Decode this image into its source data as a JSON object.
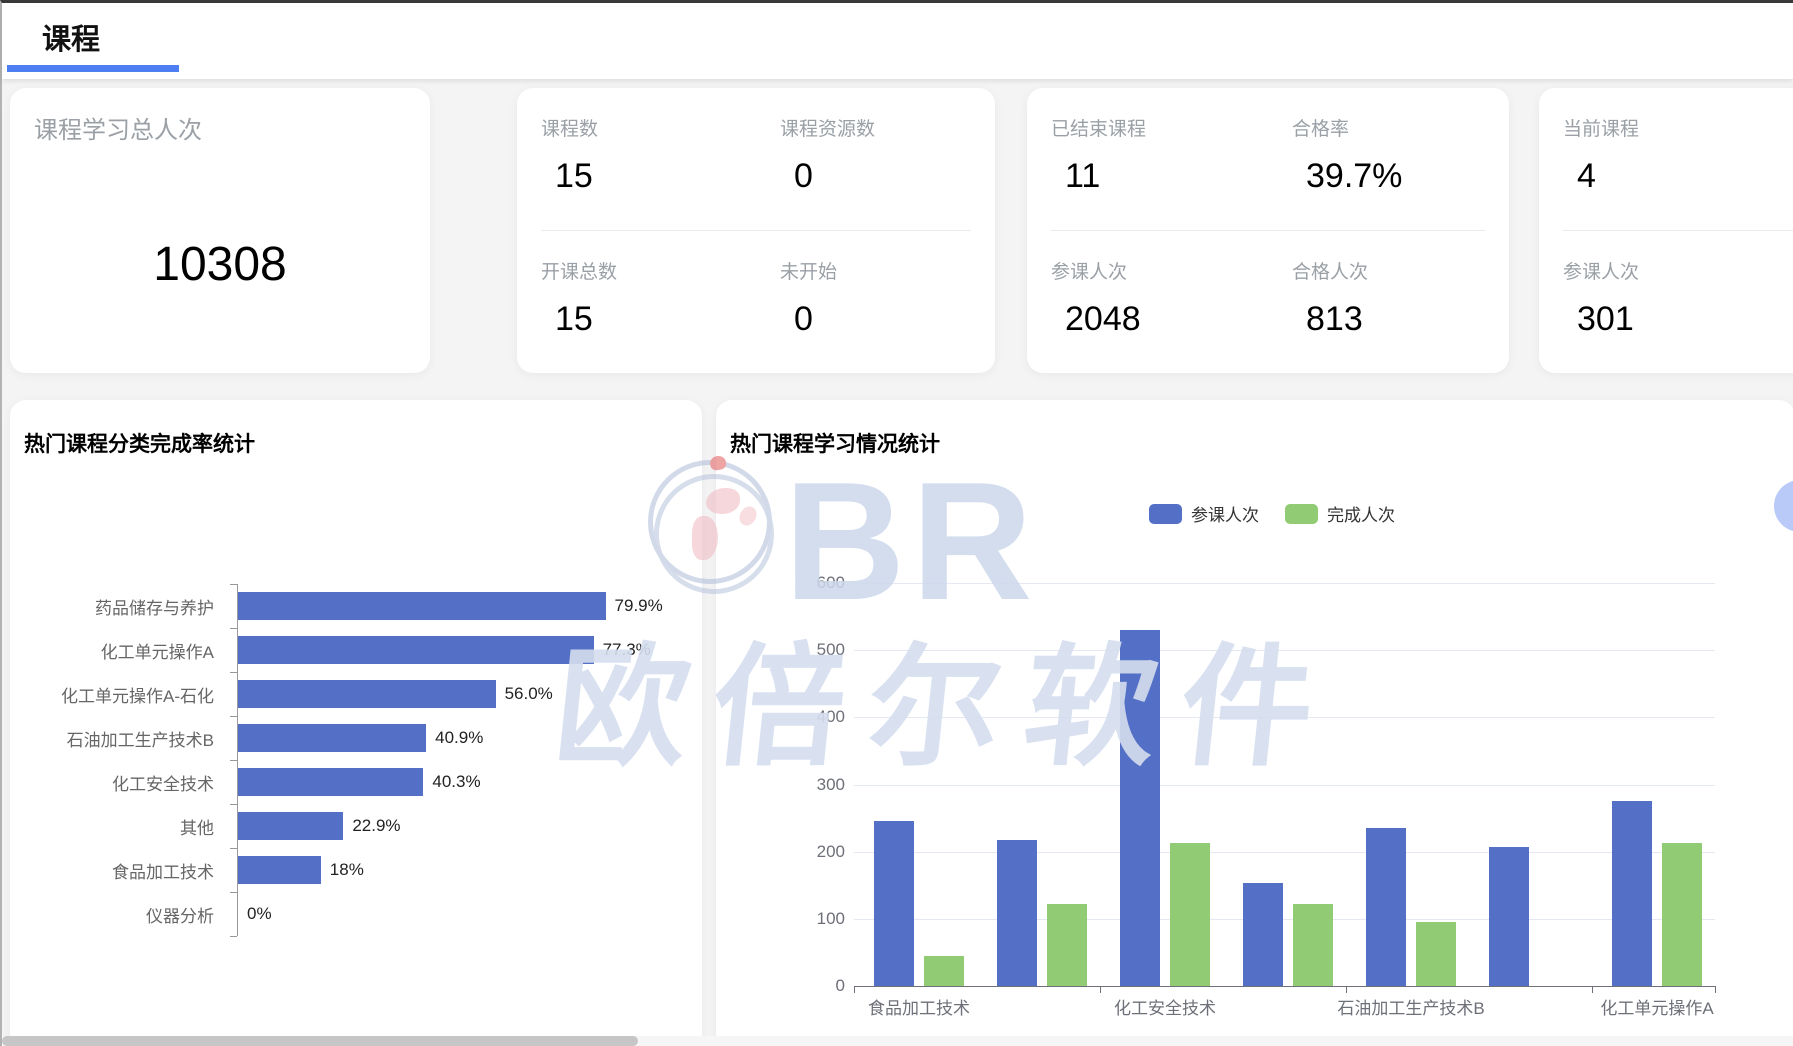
{
  "page": {
    "tab_title": "课程"
  },
  "colors": {
    "tab_underline": "#4d7ef2",
    "bar_blue": "#5470c6",
    "bar_green": "#91cc75"
  },
  "stat_cards": {
    "total": {
      "label": "课程学习总人次",
      "value": "10308"
    },
    "course": {
      "r1c1": {
        "label": "课程数",
        "value": "15"
      },
      "r1c2": {
        "label": "课程资源数",
        "value": "0"
      },
      "r2c1": {
        "label": "开课总数",
        "value": "15"
      },
      "r2c2": {
        "label": "未开始",
        "value": "0"
      }
    },
    "finished": {
      "r1c1": {
        "label": "已结束课程",
        "value": "11"
      },
      "r1c2": {
        "label": "合格率",
        "value": "39.7%"
      },
      "r2c1": {
        "label": "参课人次",
        "value": "2048"
      },
      "r2c2": {
        "label": "合格人次",
        "value": "813"
      }
    },
    "current": {
      "r1c1": {
        "label": "当前课程",
        "value": "4"
      },
      "r2c1": {
        "label": "参课人次",
        "value": "301"
      }
    }
  },
  "watermark": {
    "br": "BR",
    "text": "欧倍尔软件"
  },
  "chart_data": [
    {
      "type": "bar",
      "orientation": "horizontal",
      "title": "热门课程分类完成率统计",
      "categories": [
        "药品储存与养护",
        "化工单元操作A",
        "化工单元操作A-石化",
        "石油加工生产技术B",
        "化工安全技术",
        "其他",
        "食品加工技术",
        "仪器分析"
      ],
      "values": [
        79.9,
        77.3,
        56.0,
        40.9,
        40.3,
        22.9,
        18,
        0
      ],
      "value_labels": [
        "79.9%",
        "77.3%",
        "56.0%",
        "40.9%",
        "40.3%",
        "22.9%",
        "18%",
        "0%"
      ],
      "xlim": [
        0,
        100
      ],
      "grid": false,
      "bar_color": "#5470c6"
    },
    {
      "type": "bar",
      "orientation": "vertical",
      "title": "热门课程学习情况统计",
      "categories": [
        "食品加工技术",
        "",
        "化工安全技术",
        "",
        "石油加工生产技术B",
        "",
        "化工单元操作A"
      ],
      "series": [
        {
          "name": "参课人次",
          "color": "#5470c6",
          "values": [
            245,
            218,
            530,
            154,
            236,
            207,
            276
          ]
        },
        {
          "name": "完成人次",
          "color": "#91cc75",
          "values": [
            44,
            122,
            213,
            122,
            96,
            0,
            213
          ]
        }
      ],
      "ylim": [
        0,
        600
      ],
      "yticks": [
        "0",
        "100",
        "200",
        "300",
        "400",
        "500",
        "600"
      ],
      "grid": true,
      "legend": [
        "参课人次",
        "完成人次"
      ],
      "legend_position": "top"
    }
  ]
}
